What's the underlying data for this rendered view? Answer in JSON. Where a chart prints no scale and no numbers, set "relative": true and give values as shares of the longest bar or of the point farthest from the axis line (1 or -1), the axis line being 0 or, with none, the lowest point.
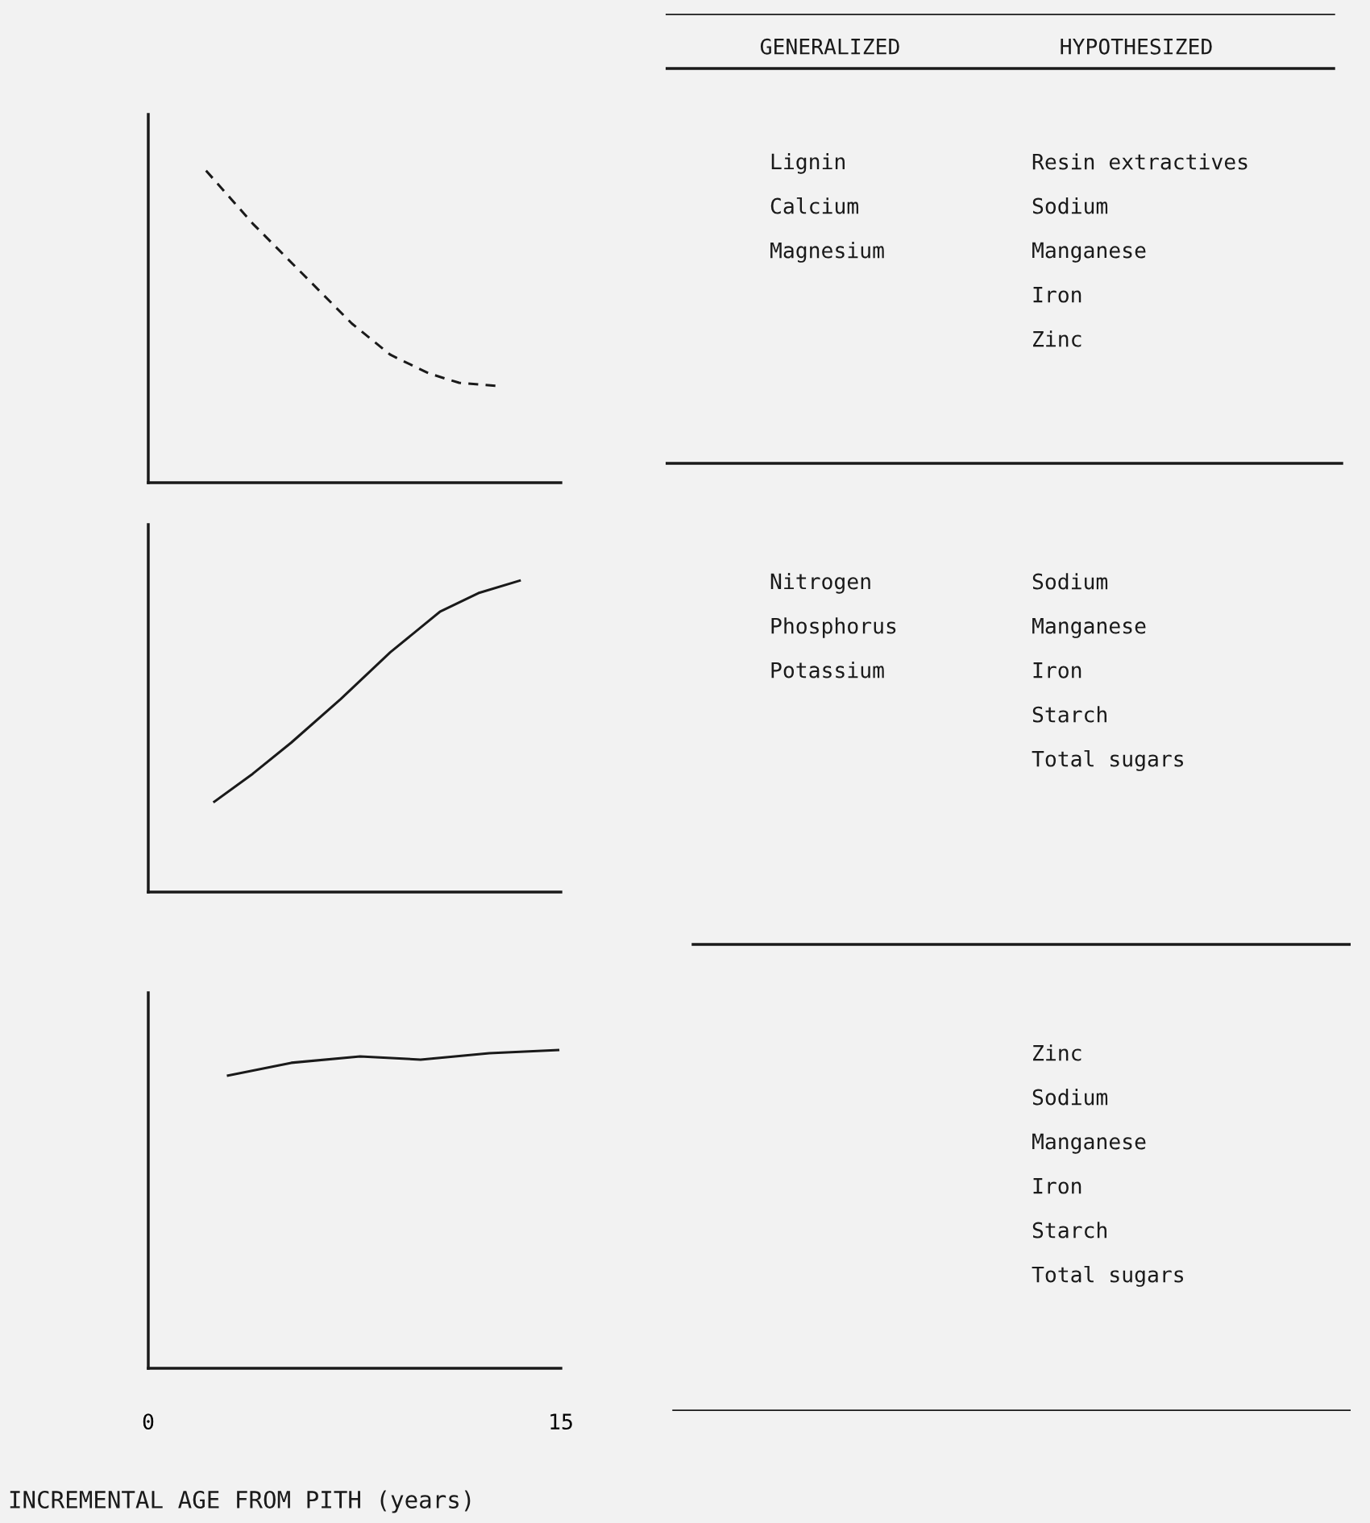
{
  "chart_data": [
    {
      "type": "other",
      "categories": [
        "GENERALIZED",
        "HYPOTHESIZED"
      ]
    },
    {
      "type": "line",
      "relative": true,
      "xlim": [
        0,
        15
      ],
      "xticks": [
        0,
        15
      ],
      "tick_labels": false,
      "line_style": "dashed",
      "marker": "none",
      "grid": false,
      "legend": false,
      "series": [
        {
          "color": "#1a1a1a",
          "x": [
            2.1,
            3.8,
            5.6,
            7.4,
            8.8,
            10.2,
            11.3,
            12.7
          ],
          "values": [
            1.0,
            0.83,
            0.67,
            0.51,
            0.41,
            0.35,
            0.32,
            0.31
          ]
        }
      ],
      "annotations": [
        "Lignin\nCalcium\nMagnesium",
        "Resin extractives\nSodium\nManganese\nIron\nZinc"
      ]
    },
    {
      "type": "line",
      "relative": true,
      "xlim": [
        0,
        15
      ],
      "xticks": [
        0,
        15
      ],
      "tick_labels": false,
      "line_style": "solid",
      "marker": "none",
      "grid": false,
      "legend": false,
      "series": [
        {
          "color": "#1a1a1a",
          "x": [
            2.4,
            3.8,
            5.2,
            7.0,
            8.8,
            10.6,
            12.0,
            13.5
          ],
          "values": [
            0.29,
            0.38,
            0.48,
            0.62,
            0.77,
            0.9,
            0.96,
            1.0
          ]
        }
      ],
      "annotations": [
        "Nitrogen\nPhosphorus\nPotassium",
        "Sodium\nManganese\nIron\nStarch\nTotal sugars"
      ]
    },
    {
      "type": "line",
      "relative": true,
      "xlim": [
        0,
        15
      ],
      "xticks": [
        0,
        15
      ],
      "tick_labels": "x",
      "line_style": "solid",
      "marker": "none",
      "grid": false,
      "legend": false,
      "xlabel": "INCREMENTAL AGE FROM PITH (years)",
      "series": [
        {
          "color": "#1a1a1a",
          "x": [
            2.9,
            5.2,
            7.7,
            9.9,
            12.4,
            14.9
          ],
          "values": [
            0.92,
            0.96,
            0.98,
            0.97,
            0.99,
            1.0
          ]
        }
      ],
      "annotations": [
        null,
        "Zinc\nSodium\nManganese\nIron\nStarch\nTotal sugars"
      ]
    }
  ]
}
